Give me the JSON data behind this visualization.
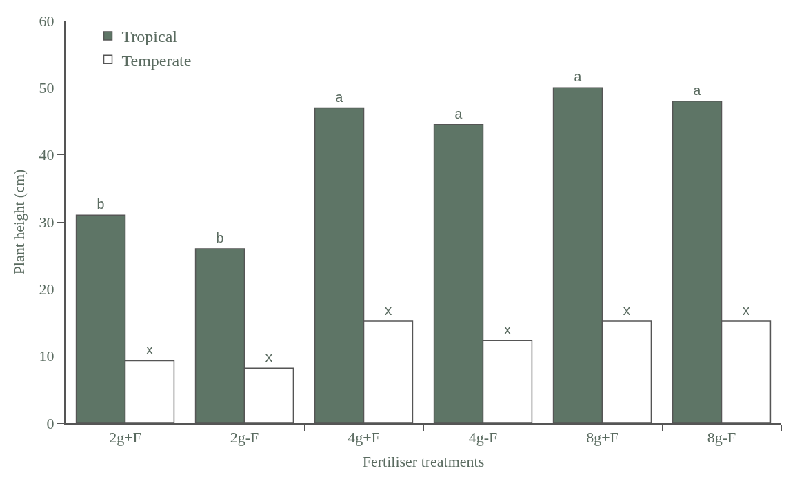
{
  "chart_data": {
    "type": "bar",
    "xlabel": "Fertiliser treatments",
    "ylabel": "Plant height (cm)",
    "categories": [
      "2g+F",
      "2g-F",
      "4g+F",
      "4g-F",
      "8g+F",
      "8g-F"
    ],
    "series": [
      {
        "name": "Tropical",
        "color": "#5e7566",
        "values": [
          31,
          26,
          47,
          44.5,
          50,
          48
        ],
        "value_labels": [
          "b",
          "b",
          "a",
          "a",
          "a",
          "a"
        ]
      },
      {
        "name": "Temperate",
        "color": "#ffffff",
        "values": [
          9.3,
          8.2,
          15.2,
          12.3,
          15.2,
          15.2
        ],
        "value_labels": [
          "x",
          "x",
          "x",
          "x",
          "x",
          "x"
        ]
      }
    ],
    "ylim": [
      0,
      60
    ],
    "yticks": [
      0,
      10,
      20,
      30,
      40,
      50,
      60
    ],
    "legend": "top left"
  }
}
